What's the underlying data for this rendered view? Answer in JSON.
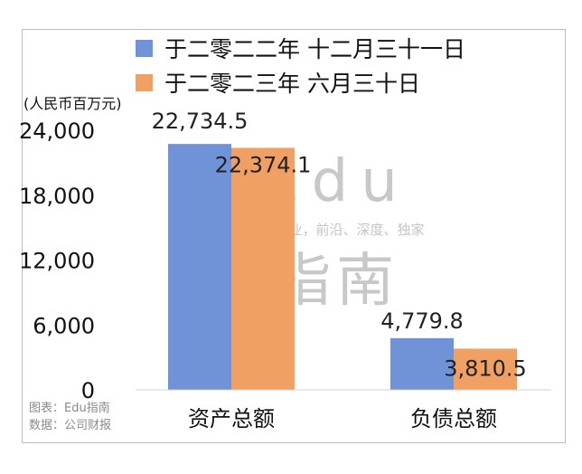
{
  "chart_data": {
    "type": "bar",
    "unit_label": "(人民币百万元)",
    "categories": [
      "资产总额",
      "负债总额"
    ],
    "series": [
      {
        "name": "于二零二二年 十二月三十一日",
        "values": [
          22734.5,
          4779.8
        ],
        "labels": [
          "22,734.5",
          "4,779.8"
        ],
        "color": "#6f93d6"
      },
      {
        "name": "于二零二三年 六月三十日",
        "values": [
          22374.1,
          3810.5
        ],
        "labels": [
          "22,374.1",
          "3,810.5"
        ],
        "color": "#f0a062"
      }
    ],
    "yticks": [
      0,
      6000,
      12000,
      18000,
      24000
    ],
    "ytick_labels": [
      "0",
      "6,000",
      "12,000",
      "18,000",
      "24,000"
    ],
    "ylim": [
      0,
      24000
    ],
    "grid": false,
    "legend_position": "top"
  },
  "watermark": {
    "line1": "Edu",
    "tagline": "教育行业，前沿、深度、独家",
    "line2": "指南"
  },
  "credits": {
    "chart_by": "图表：Edu指南",
    "source": "数据：公司财报"
  }
}
